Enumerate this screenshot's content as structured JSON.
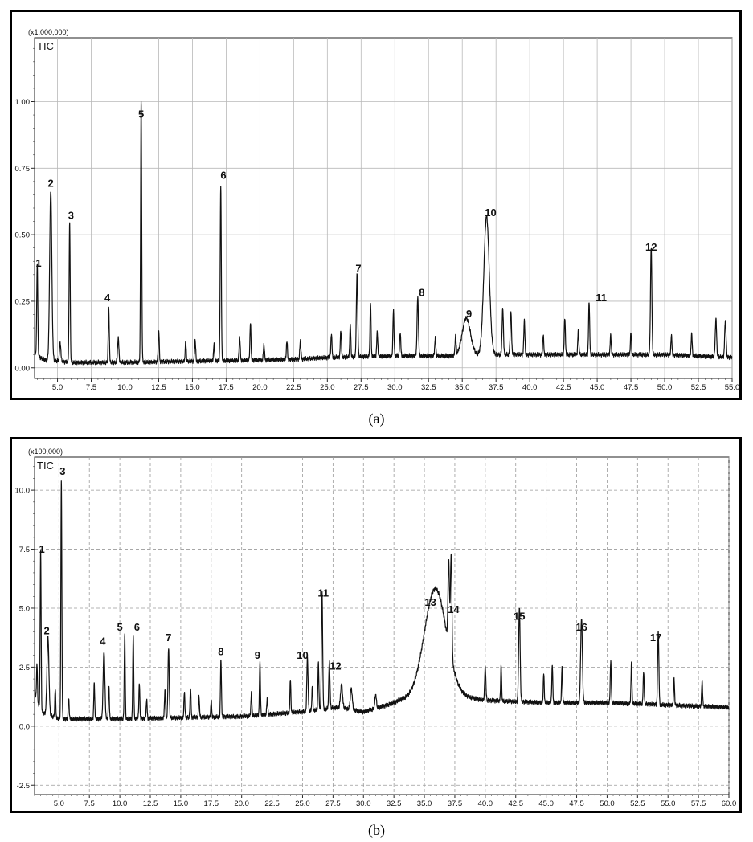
{
  "chart_data": [
    {
      "type": "line",
      "panel_label": "(a)",
      "scale_label": "(x1,000,000)",
      "series_label": "TIC",
      "xlim": [
        3.3,
        55.0
      ],
      "ylim": [
        -0.04,
        1.24
      ],
      "grid": "solid",
      "x_ticks": [
        {
          "v": 5.0,
          "label": "5.0"
        },
        {
          "v": 7.5,
          "label": "7.5"
        },
        {
          "v": 10.0,
          "label": "10.0"
        },
        {
          "v": 12.5,
          "label": "12.5"
        },
        {
          "v": 15.0,
          "label": "15.0"
        },
        {
          "v": 17.5,
          "label": "17.5"
        },
        {
          "v": 20.0,
          "label": "20.0"
        },
        {
          "v": 22.5,
          "label": "22.5"
        },
        {
          "v": 25.0,
          "label": "25.0"
        },
        {
          "v": 27.5,
          "label": "27.5"
        },
        {
          "v": 30.0,
          "label": "30.0"
        },
        {
          "v": 32.5,
          "label": "32.5"
        },
        {
          "v": 35.0,
          "label": "35.0"
        },
        {
          "v": 37.5,
          "label": "37.5"
        },
        {
          "v": 40.0,
          "label": "40.0"
        },
        {
          "v": 42.5,
          "label": "42.5"
        },
        {
          "v": 45.0,
          "label": "45.0"
        },
        {
          "v": 47.5,
          "label": "47.5"
        },
        {
          "v": 50.0,
          "label": "50.0"
        },
        {
          "v": 52.5,
          "label": "52.5"
        },
        {
          "v": 55.0,
          "label": "55.0"
        }
      ],
      "y_ticks": [
        {
          "v": 0.0,
          "label": "0.00"
        },
        {
          "v": 0.25,
          "label": "0.25"
        },
        {
          "v": 0.5,
          "label": "0.50"
        },
        {
          "v": 0.75,
          "label": "0.75"
        },
        {
          "v": 1.0,
          "label": "1.00"
        }
      ],
      "baseline": [
        [
          3.4,
          0.05
        ],
        [
          4.0,
          0.03
        ],
        [
          6.0,
          0.02
        ],
        [
          10.0,
          0.02
        ],
        [
          16.0,
          0.025
        ],
        [
          22.0,
          0.03
        ],
        [
          26.0,
          0.04
        ],
        [
          30.0,
          0.045
        ],
        [
          34.0,
          0.045
        ],
        [
          37.0,
          0.05
        ],
        [
          40.0,
          0.05
        ],
        [
          46.0,
          0.05
        ],
        [
          50.0,
          0.05
        ],
        [
          55.0,
          0.04
        ]
      ],
      "peaks": [
        {
          "x": 3.5,
          "h": 0.34,
          "w": 0.04,
          "label": "1"
        },
        {
          "x": 4.5,
          "h": 0.64,
          "w": 0.08,
          "label": "2"
        },
        {
          "x": 5.9,
          "h": 0.52,
          "w": 0.04,
          "label": "3"
        },
        {
          "x": 8.8,
          "h": 0.2,
          "w": 0.04,
          "label": "4"
        },
        {
          "x": 11.2,
          "h": 0.98,
          "w": 0.04,
          "label": "5"
        },
        {
          "x": 17.1,
          "h": 0.66,
          "w": 0.04,
          "label": "6"
        },
        {
          "x": 27.2,
          "h": 0.31,
          "w": 0.05,
          "label": "7"
        },
        {
          "x": 31.7,
          "h": 0.22,
          "w": 0.05,
          "label": "8"
        },
        {
          "x": 35.3,
          "h": 0.14,
          "w": 0.3,
          "label": "9"
        },
        {
          "x": 36.8,
          "h": 0.52,
          "w": 0.2,
          "label": "10"
        },
        {
          "x": 44.4,
          "h": 0.2,
          "w": 0.04,
          "label": "11"
        },
        {
          "x": 49.0,
          "h": 0.4,
          "w": 0.05,
          "label": "12"
        },
        {
          "x": 5.2,
          "h": 0.07,
          "w": 0.05
        },
        {
          "x": 9.5,
          "h": 0.09,
          "w": 0.05
        },
        {
          "x": 12.5,
          "h": 0.12,
          "w": 0.04
        },
        {
          "x": 14.5,
          "h": 0.07,
          "w": 0.04
        },
        {
          "x": 15.2,
          "h": 0.08,
          "w": 0.04
        },
        {
          "x": 16.6,
          "h": 0.06,
          "w": 0.04
        },
        {
          "x": 18.5,
          "h": 0.09,
          "w": 0.04
        },
        {
          "x": 19.3,
          "h": 0.14,
          "w": 0.04
        },
        {
          "x": 20.3,
          "h": 0.06,
          "w": 0.04
        },
        {
          "x": 22.0,
          "h": 0.07,
          "w": 0.04
        },
        {
          "x": 23.0,
          "h": 0.07,
          "w": 0.04
        },
        {
          "x": 25.3,
          "h": 0.09,
          "w": 0.04
        },
        {
          "x": 26.0,
          "h": 0.1,
          "w": 0.04
        },
        {
          "x": 26.7,
          "h": 0.12,
          "w": 0.04
        },
        {
          "x": 28.2,
          "h": 0.2,
          "w": 0.04
        },
        {
          "x": 28.7,
          "h": 0.09,
          "w": 0.04
        },
        {
          "x": 29.9,
          "h": 0.17,
          "w": 0.04
        },
        {
          "x": 30.4,
          "h": 0.09,
          "w": 0.04
        },
        {
          "x": 33.0,
          "h": 0.07,
          "w": 0.04
        },
        {
          "x": 34.5,
          "h": 0.07,
          "w": 0.04
        },
        {
          "x": 38.0,
          "h": 0.17,
          "w": 0.05
        },
        {
          "x": 38.6,
          "h": 0.16,
          "w": 0.05
        },
        {
          "x": 39.6,
          "h": 0.13,
          "w": 0.04
        },
        {
          "x": 41.0,
          "h": 0.07,
          "w": 0.04
        },
        {
          "x": 42.6,
          "h": 0.14,
          "w": 0.04
        },
        {
          "x": 43.6,
          "h": 0.09,
          "w": 0.04
        },
        {
          "x": 46.0,
          "h": 0.07,
          "w": 0.04
        },
        {
          "x": 47.5,
          "h": 0.08,
          "w": 0.04
        },
        {
          "x": 50.5,
          "h": 0.07,
          "w": 0.04
        },
        {
          "x": 52.0,
          "h": 0.08,
          "w": 0.04
        },
        {
          "x": 53.8,
          "h": 0.14,
          "w": 0.05
        },
        {
          "x": 54.5,
          "h": 0.14,
          "w": 0.05
        }
      ],
      "peak_labels": [
        {
          "text": "1",
          "x": 3.6,
          "y": 0.38
        },
        {
          "text": "2",
          "x": 4.5,
          "y": 0.68
        },
        {
          "text": "3",
          "x": 6.0,
          "y": 0.56
        },
        {
          "text": "4",
          "x": 8.7,
          "y": 0.25
        },
        {
          "text": "5",
          "x": 11.2,
          "y": 0.94
        },
        {
          "text": "6",
          "x": 17.3,
          "y": 0.71
        },
        {
          "text": "7",
          "x": 27.3,
          "y": 0.36
        },
        {
          "text": "8",
          "x": 32.0,
          "y": 0.27
        },
        {
          "text": "9",
          "x": 35.5,
          "y": 0.19
        },
        {
          "text": "10",
          "x": 37.1,
          "y": 0.57
        },
        {
          "text": "11",
          "x": 45.3,
          "y": 0.25
        },
        {
          "text": "12",
          "x": 49.0,
          "y": 0.44
        }
      ]
    },
    {
      "type": "line",
      "panel_label": "(b)",
      "scale_label": "(x100,000)",
      "series_label": "TIC",
      "xlim": [
        3.0,
        60.0
      ],
      "ylim": [
        -2.9,
        11.4
      ],
      "grid": "dashed",
      "x_ticks": [
        {
          "v": 5.0,
          "label": "5.0"
        },
        {
          "v": 7.5,
          "label": "7.5"
        },
        {
          "v": 10.0,
          "label": "10.0"
        },
        {
          "v": 12.5,
          "label": "12.5"
        },
        {
          "v": 15.0,
          "label": "15.0"
        },
        {
          "v": 17.5,
          "label": "17.5"
        },
        {
          "v": 20.0,
          "label": "20.0"
        },
        {
          "v": 22.5,
          "label": "22.5"
        },
        {
          "v": 25.0,
          "label": "25.0"
        },
        {
          "v": 27.5,
          "label": "27.5"
        },
        {
          "v": 30.0,
          "label": "30.0"
        },
        {
          "v": 32.5,
          "label": "32.5"
        },
        {
          "v": 35.0,
          "label": "35.0"
        },
        {
          "v": 37.5,
          "label": "37.5"
        },
        {
          "v": 40.0,
          "label": "40.0"
        },
        {
          "v": 42.5,
          "label": "42.5"
        },
        {
          "v": 45.0,
          "label": "45.0"
        },
        {
          "v": 47.5,
          "label": "47.5"
        },
        {
          "v": 50.0,
          "label": "50.0"
        },
        {
          "v": 52.5,
          "label": "52.5"
        },
        {
          "v": 55.0,
          "label": "55.0"
        },
        {
          "v": 57.5,
          "label": "57.5"
        },
        {
          "v": 60.0,
          "label": "60.0"
        }
      ],
      "y_ticks": [
        {
          "v": -2.5,
          "label": "-2.5"
        },
        {
          "v": 0.0,
          "label": "0.0"
        },
        {
          "v": 2.5,
          "label": "2.5"
        },
        {
          "v": 5.0,
          "label": "5.0"
        },
        {
          "v": 7.5,
          "label": "7.5"
        },
        {
          "v": 10.0,
          "label": "10.0"
        }
      ],
      "baseline": [
        [
          3.0,
          1.4
        ],
        [
          3.5,
          0.6
        ],
        [
          5.0,
          0.3
        ],
        [
          10.0,
          0.3
        ],
        [
          15.0,
          0.35
        ],
        [
          20.0,
          0.4
        ],
        [
          25.0,
          0.6
        ],
        [
          28.0,
          0.8
        ],
        [
          30.0,
          0.6
        ],
        [
          32.0,
          0.9
        ],
        [
          33.0,
          1.1
        ],
        [
          37.5,
          1.3
        ],
        [
          40.0,
          1.1
        ],
        [
          45.0,
          1.0
        ],
        [
          50.0,
          1.0
        ],
        [
          55.0,
          0.9
        ],
        [
          60.0,
          0.8
        ]
      ],
      "peaks": [
        {
          "x": 3.5,
          "h": 6.8,
          "w": 0.04,
          "label": "1"
        },
        {
          "x": 4.1,
          "h": 3.3,
          "w": 0.08,
          "label": "2"
        },
        {
          "x": 5.2,
          "h": 10.1,
          "w": 0.04,
          "label": "3"
        },
        {
          "x": 8.7,
          "h": 2.9,
          "w": 0.07,
          "label": "4"
        },
        {
          "x": 10.4,
          "h": 3.6,
          "w": 0.04,
          "label": "5"
        },
        {
          "x": 11.1,
          "h": 3.6,
          "w": 0.04,
          "label": "6"
        },
        {
          "x": 14.0,
          "h": 3.0,
          "w": 0.05,
          "label": "7"
        },
        {
          "x": 18.3,
          "h": 2.4,
          "w": 0.04,
          "label": "8"
        },
        {
          "x": 21.5,
          "h": 2.3,
          "w": 0.04,
          "label": "9"
        },
        {
          "x": 25.4,
          "h": 2.3,
          "w": 0.05,
          "label": "10"
        },
        {
          "x": 26.6,
          "h": 5.0,
          "w": 0.05,
          "label": "11"
        },
        {
          "x": 27.2,
          "h": 2.0,
          "w": 0.05,
          "label": "12"
        },
        {
          "x": 35.9,
          "h": 4.6,
          "w": 0.9,
          "label": "13"
        },
        {
          "x": 37.2,
          "h": 4.4,
          "w": 0.06,
          "label": "14"
        },
        {
          "x": 42.8,
          "h": 4.0,
          "w": 0.06,
          "label": "15"
        },
        {
          "x": 47.9,
          "h": 3.6,
          "w": 0.07,
          "label": "16"
        },
        {
          "x": 54.2,
          "h": 3.1,
          "w": 0.05,
          "label": "17"
        },
        {
          "x": 3.2,
          "h": 1.5,
          "w": 0.04
        },
        {
          "x": 4.7,
          "h": 1.2,
          "w": 0.04
        },
        {
          "x": 5.8,
          "h": 0.9,
          "w": 0.04
        },
        {
          "x": 7.9,
          "h": 1.5,
          "w": 0.04
        },
        {
          "x": 9.1,
          "h": 1.4,
          "w": 0.04
        },
        {
          "x": 11.6,
          "h": 1.5,
          "w": 0.04
        },
        {
          "x": 12.2,
          "h": 0.8,
          "w": 0.04
        },
        {
          "x": 13.7,
          "h": 1.2,
          "w": 0.04
        },
        {
          "x": 15.3,
          "h": 1.1,
          "w": 0.04
        },
        {
          "x": 15.8,
          "h": 1.3,
          "w": 0.04
        },
        {
          "x": 16.5,
          "h": 0.9,
          "w": 0.04
        },
        {
          "x": 17.5,
          "h": 0.7,
          "w": 0.04
        },
        {
          "x": 20.8,
          "h": 1.0,
          "w": 0.04
        },
        {
          "x": 22.1,
          "h": 0.7,
          "w": 0.04
        },
        {
          "x": 24.0,
          "h": 1.4,
          "w": 0.04
        },
        {
          "x": 25.8,
          "h": 1.0,
          "w": 0.04
        },
        {
          "x": 26.3,
          "h": 2.0,
          "w": 0.04
        },
        {
          "x": 28.2,
          "h": 1.0,
          "w": 0.08
        },
        {
          "x": 29.0,
          "h": 0.9,
          "w": 0.08
        },
        {
          "x": 31.0,
          "h": 0.6,
          "w": 0.06
        },
        {
          "x": 37.0,
          "h": 3.6,
          "w": 0.06
        },
        {
          "x": 40.0,
          "h": 1.4,
          "w": 0.05
        },
        {
          "x": 41.3,
          "h": 1.5,
          "w": 0.04
        },
        {
          "x": 44.8,
          "h": 1.2,
          "w": 0.04
        },
        {
          "x": 45.5,
          "h": 1.6,
          "w": 0.04
        },
        {
          "x": 46.3,
          "h": 1.5,
          "w": 0.04
        },
        {
          "x": 50.3,
          "h": 1.8,
          "w": 0.04
        },
        {
          "x": 52.0,
          "h": 1.7,
          "w": 0.04
        },
        {
          "x": 53.0,
          "h": 1.4,
          "w": 0.04
        },
        {
          "x": 55.5,
          "h": 1.1,
          "w": 0.04
        },
        {
          "x": 57.8,
          "h": 1.1,
          "w": 0.04
        }
      ],
      "peak_labels": [
        {
          "text": "1",
          "x": 3.6,
          "y": 7.35
        },
        {
          "text": "2",
          "x": 4.0,
          "y": 3.9
        },
        {
          "text": "3",
          "x": 5.3,
          "y": 10.65
        },
        {
          "text": "4",
          "x": 8.6,
          "y": 3.45
        },
        {
          "text": "5",
          "x": 10.0,
          "y": 4.05
        },
        {
          "text": "6",
          "x": 11.4,
          "y": 4.05
        },
        {
          "text": "7",
          "x": 14.0,
          "y": 3.6
        },
        {
          "text": "8",
          "x": 18.3,
          "y": 3.0
        },
        {
          "text": "9",
          "x": 21.3,
          "y": 2.85
        },
        {
          "text": "10",
          "x": 25.0,
          "y": 2.85
        },
        {
          "text": "11",
          "x": 26.7,
          "y": 5.5
        },
        {
          "text": "12",
          "x": 27.7,
          "y": 2.4
        },
        {
          "text": "13",
          "x": 35.5,
          "y": 5.1
        },
        {
          "text": "14",
          "x": 37.4,
          "y": 4.8
        },
        {
          "text": "15",
          "x": 42.8,
          "y": 4.5
        },
        {
          "text": "16",
          "x": 47.9,
          "y": 4.05
        },
        {
          "text": "17",
          "x": 54.0,
          "y": 3.6
        }
      ]
    }
  ]
}
